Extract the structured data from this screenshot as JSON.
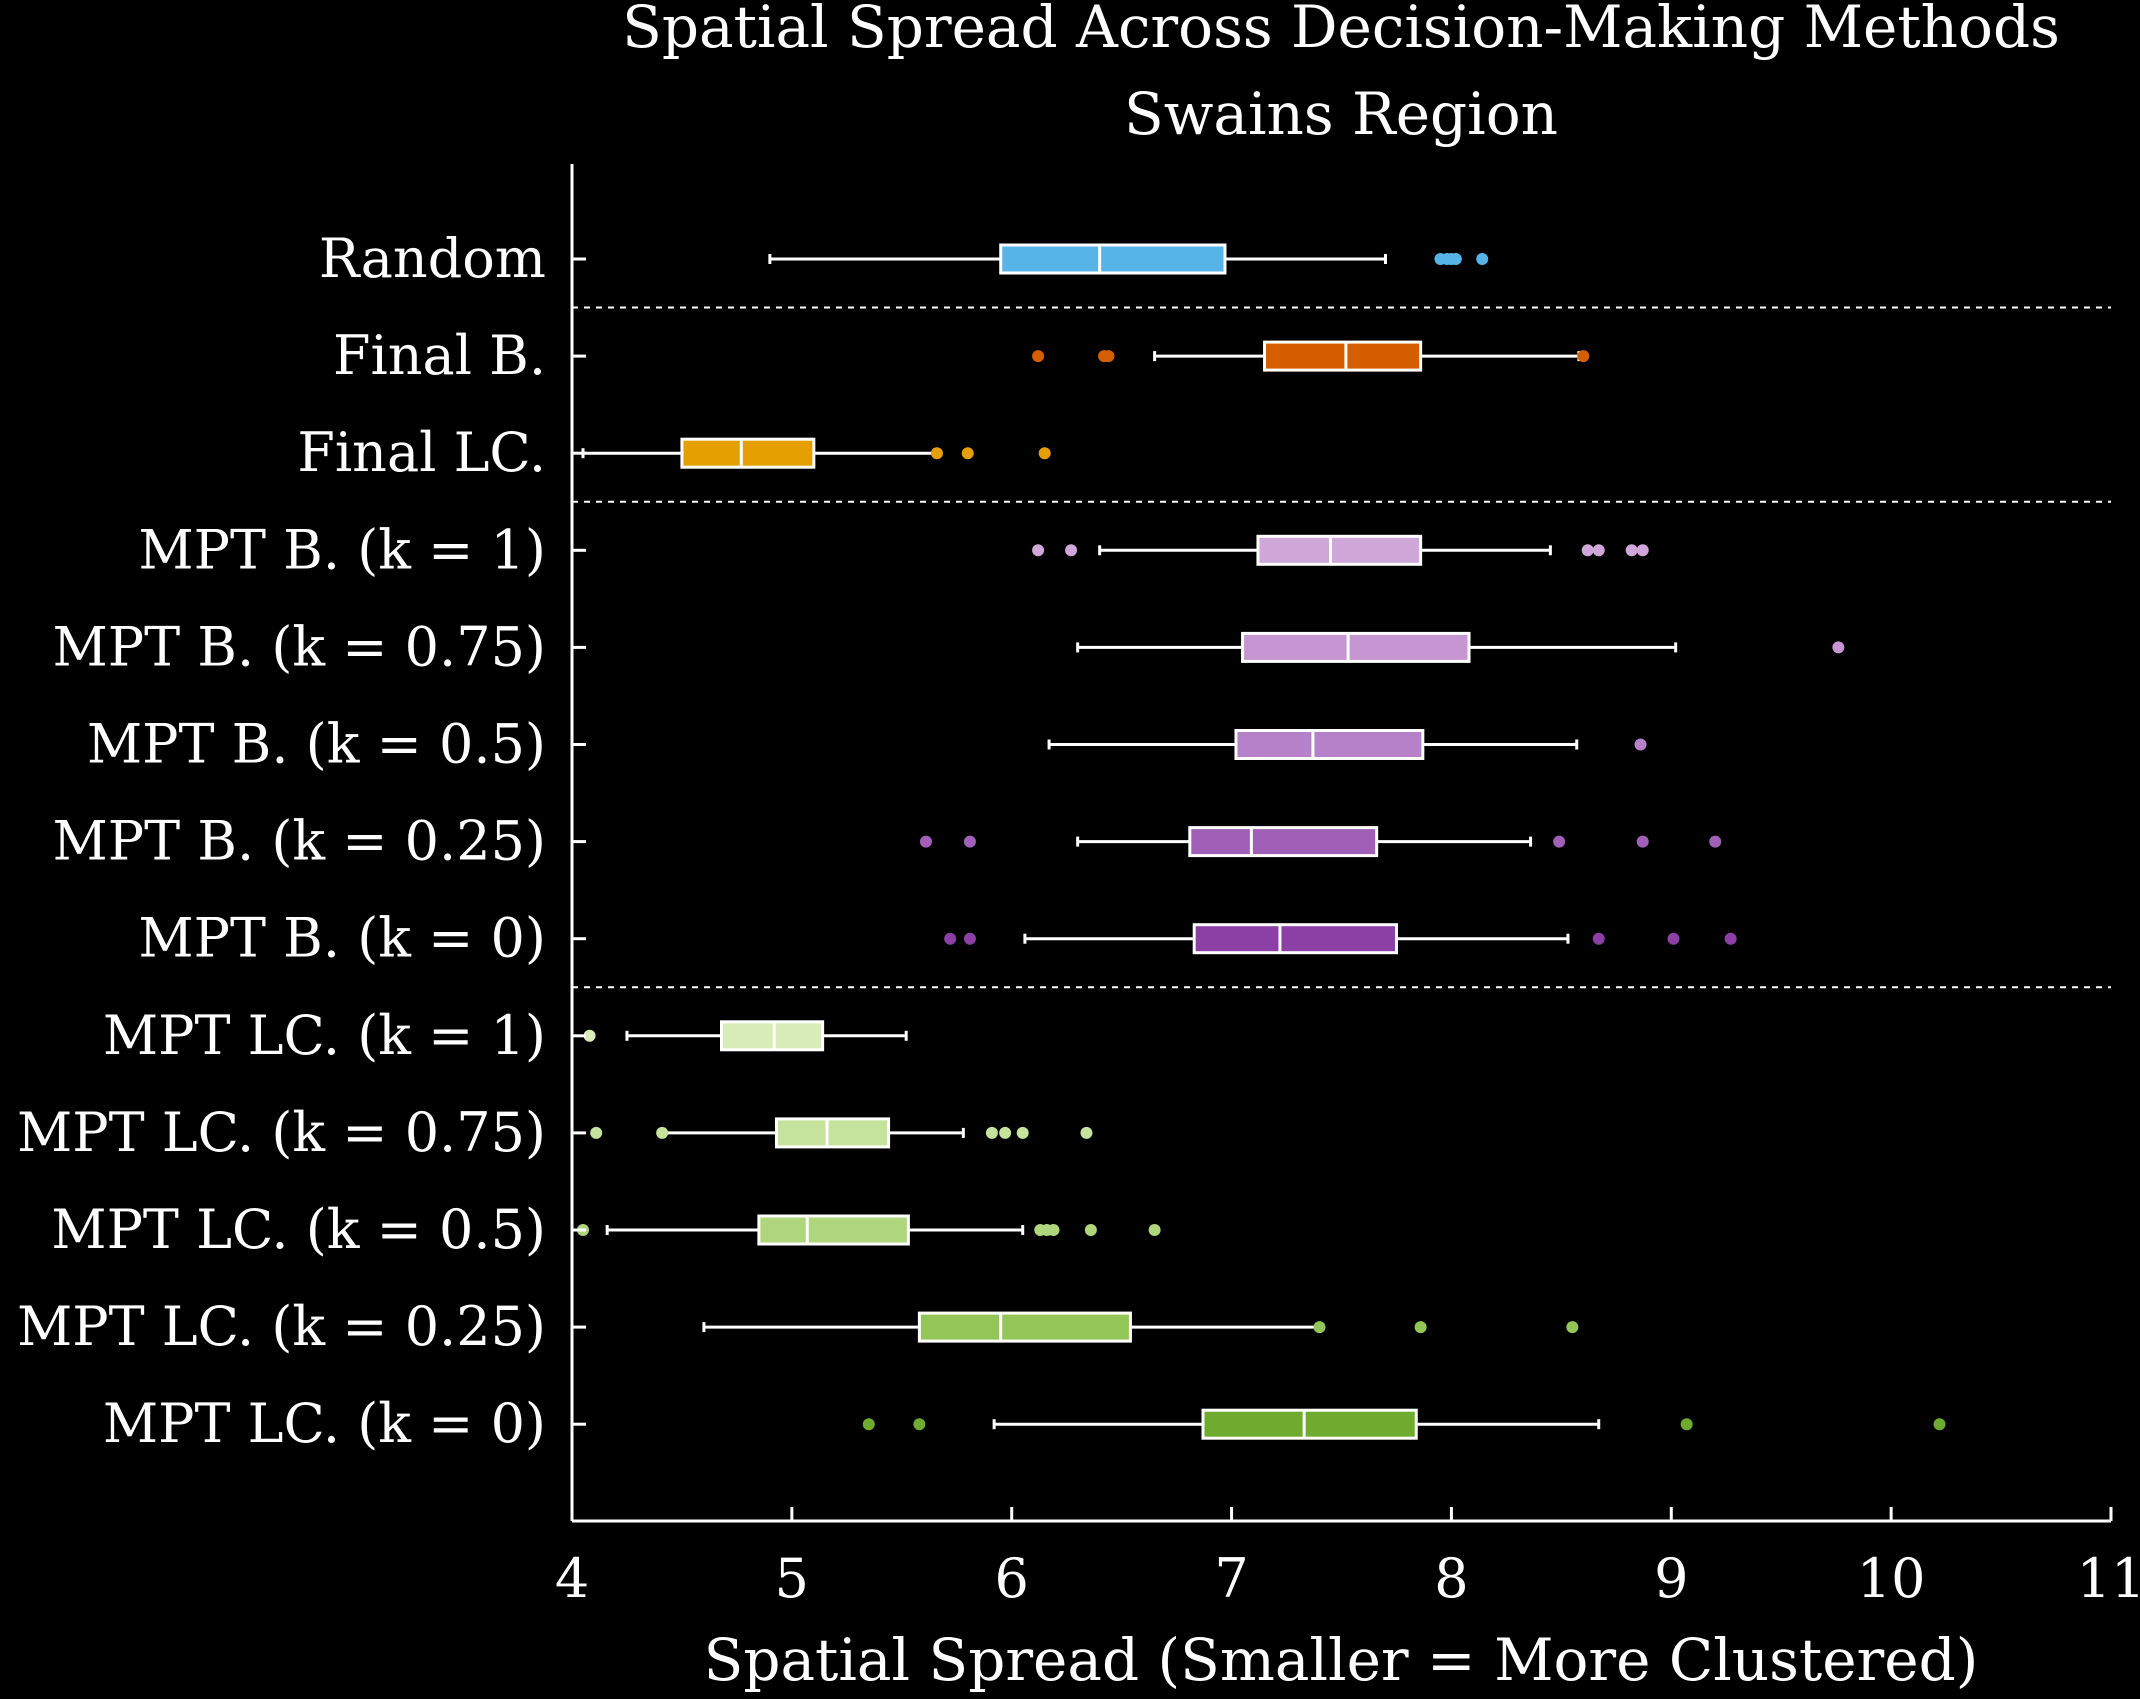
{
  "chart_data": {
    "type": "boxplot",
    "title": "Spatial Spread Across Decision-Making Methods",
    "subtitle": "Swains Region",
    "xlabel": "Spatial Spread (Smaller = More Clustered)",
    "ylabel": "",
    "xlim": [
      4,
      11
    ],
    "xticks": [
      "4",
      "5",
      "6",
      "7",
      "8",
      "9",
      "10",
      "11"
    ],
    "orientation": "horizontal",
    "grid": false,
    "separators_after_rows": [
      0,
      2,
      7
    ],
    "categories": [
      "Random",
      "Final B.",
      "Final LC.",
      "MPT B. (k = 1)",
      "MPT B. (k = 0.75)",
      "MPT B. (k = 0.5)",
      "MPT B. (k = 0.25)",
      "MPT B. (k = 0)",
      "MPT LC. (k = 1)",
      "MPT LC. (k = 0.75)",
      "MPT LC. (k = 0.5)",
      "MPT LC. (k = 0.25)",
      "MPT LC. (k = 0)"
    ],
    "boxes": [
      {
        "color": "#56B4E9",
        "whisker_low": 4.9,
        "q1": 5.95,
        "median": 6.4,
        "q3": 6.97,
        "whisker_high": 7.7,
        "outliers": [
          7.95,
          7.98,
          8.0,
          8.02,
          8.14
        ]
      },
      {
        "color": "#D55E00",
        "whisker_low": 6.65,
        "q1": 7.15,
        "median": 7.52,
        "q3": 7.86,
        "whisker_high": 8.58,
        "outliers": [
          6.12,
          6.42,
          6.44,
          8.6
        ]
      },
      {
        "color": "#E69F00",
        "whisker_low": 4.05,
        "q1": 4.5,
        "median": 4.77,
        "q3": 5.1,
        "whisker_high": 5.65,
        "outliers": [
          5.66,
          5.8,
          6.15
        ]
      },
      {
        "color": "#CFA8D9",
        "whisker_low": 6.4,
        "q1": 7.12,
        "median": 7.45,
        "q3": 7.86,
        "whisker_high": 8.45,
        "outliers": [
          6.12,
          6.27,
          8.62,
          8.67,
          8.82,
          8.87
        ]
      },
      {
        "color": "#C596D2",
        "whisker_low": 6.3,
        "q1": 7.05,
        "median": 7.53,
        "q3": 8.08,
        "whisker_high": 9.02,
        "outliers": [
          9.76
        ]
      },
      {
        "color": "#B781C9",
        "whisker_low": 6.17,
        "q1": 7.02,
        "median": 7.37,
        "q3": 7.87,
        "whisker_high": 8.57,
        "outliers": [
          8.86
        ]
      },
      {
        "color": "#A060B8",
        "whisker_low": 6.3,
        "q1": 6.81,
        "median": 7.09,
        "q3": 7.66,
        "whisker_high": 8.36,
        "outliers": [
          5.61,
          5.81,
          8.49,
          8.87,
          9.2
        ]
      },
      {
        "color": "#8C3FA5",
        "whisker_low": 6.06,
        "q1": 6.83,
        "median": 7.22,
        "q3": 7.75,
        "whisker_high": 8.53,
        "outliers": [
          5.72,
          5.81,
          8.67,
          9.01,
          9.27
        ]
      },
      {
        "color": "#D8EDBA",
        "whisker_low": 4.25,
        "q1": 4.68,
        "median": 4.92,
        "q3": 5.14,
        "whisker_high": 5.52,
        "outliers": [
          4.08
        ]
      },
      {
        "color": "#C5E39D",
        "whisker_low": 4.42,
        "q1": 4.93,
        "median": 5.16,
        "q3": 5.44,
        "whisker_high": 5.78,
        "outliers": [
          4.11,
          4.41,
          5.91,
          5.97,
          6.05,
          6.34
        ]
      },
      {
        "color": "#AFD67D",
        "whisker_low": 4.16,
        "q1": 4.85,
        "median": 5.07,
        "q3": 5.53,
        "whisker_high": 6.05,
        "outliers": [
          4.05,
          6.13,
          6.16,
          6.19,
          6.36,
          6.65
        ]
      },
      {
        "color": "#93C656",
        "whisker_low": 4.6,
        "q1": 5.58,
        "median": 5.95,
        "q3": 6.54,
        "whisker_high": 7.4,
        "outliers": [
          7.4,
          7.86,
          8.55
        ]
      },
      {
        "color": "#6FAB2E",
        "whisker_low": 5.92,
        "q1": 6.87,
        "median": 7.33,
        "q3": 7.84,
        "whisker_high": 8.67,
        "outliers": [
          5.35,
          5.58,
          9.07,
          10.22
        ]
      }
    ]
  }
}
